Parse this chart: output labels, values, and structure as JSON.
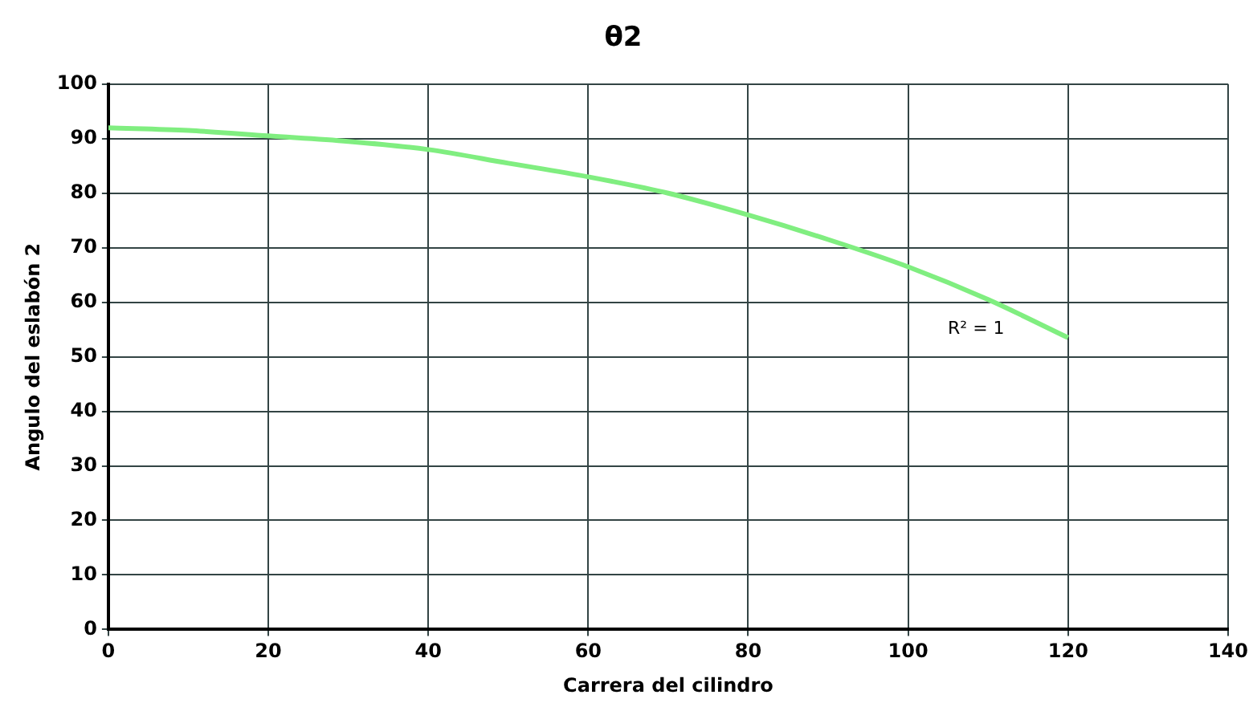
{
  "chart_data": {
    "type": "line",
    "title": "θ2",
    "xlabel": "Carrera del cilindro",
    "ylabel": "Angulo del eslabón 2",
    "x": [
      0,
      10,
      20,
      30,
      40,
      50,
      60,
      70,
      80,
      90,
      100,
      110,
      120
    ],
    "series": [
      {
        "color": "#80ee80",
        "values": [
          92,
          91.5,
          90.5,
          89.5,
          88,
          85.5,
          83,
          80,
          76,
          71.5,
          66.5,
          60.5,
          53.5
        ]
      }
    ],
    "xlim": [
      0,
      140
    ],
    "xticks": [
      0,
      20,
      40,
      60,
      80,
      100,
      120,
      140
    ],
    "ylim": [
      0,
      100
    ],
    "yticks": [
      0,
      10,
      20,
      30,
      40,
      50,
      60,
      70,
      80,
      90,
      100
    ],
    "grid": true,
    "legend": false,
    "marker": "none",
    "line_style": "solid",
    "annotations": [
      "R² = 1"
    ]
  }
}
